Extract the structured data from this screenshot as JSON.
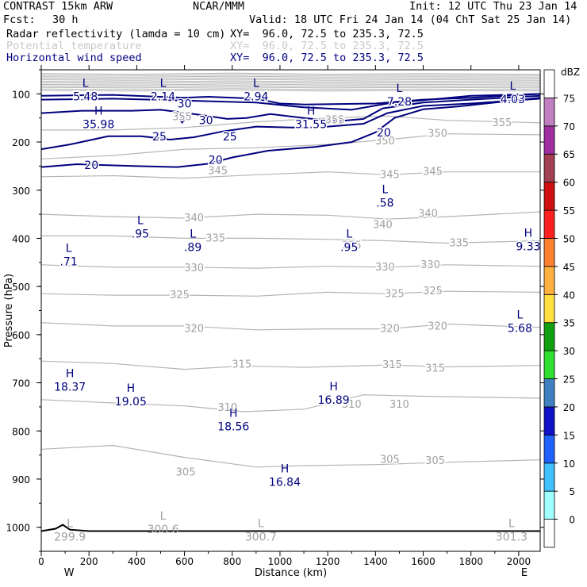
{
  "header": {
    "model": "CONTRAST 15km ARW",
    "center": "NCAR/MMM",
    "init": "Init: 12 UTC Thu 23 Jan 14",
    "fcst_label": "Fcst:",
    "fcst_value": "30 h",
    "valid": "Valid: 18 UTC Fri 24 Jan 14 (04 ChT Sat 25 Jan 14)"
  },
  "fields": [
    {
      "name": "Radar reflectivity (lamda = 10 cm)",
      "xy": "XY=  96.0, 72.5 to 235.3, 72.5",
      "color": "#000000"
    },
    {
      "name": "Potential temperature",
      "xy": "XY=  96.0, 72.5 to 235.3, 72.5",
      "color": "#c8c8c8"
    },
    {
      "name": "Horizontal wind speed",
      "xy": "XY=  96.0, 72.5 to 235.3, 72.5",
      "color": "#000080"
    }
  ],
  "colors": {
    "theta": "#b4b4b4",
    "wind": "#00007e",
    "axis": "#000000",
    "label_theta": "#a0a0a0"
  },
  "chart_data": {
    "type": "cross-section",
    "xlabel": "Distance (km)",
    "ylabel": "Pressure (hPa)",
    "xlim": [
      0,
      2090
    ],
    "ylim": [
      1050,
      50
    ],
    "x_ticks": [
      0,
      200,
      400,
      600,
      800,
      1000,
      1200,
      1400,
      1600,
      1800,
      2000
    ],
    "y_ticks": [
      100,
      200,
      300,
      400,
      500,
      600,
      700,
      800,
      900,
      1000
    ],
    "end_labels": {
      "left": "W",
      "right": "E"
    },
    "colorbar": {
      "unit": "dBZ",
      "levels": [
        0,
        5,
        10,
        15,
        20,
        25,
        30,
        35,
        40,
        45,
        50,
        55,
        60,
        65,
        70,
        75
      ],
      "colors": [
        "#ffffff",
        "#a0ffff",
        "#40c0ff",
        "#2060ff",
        "#1010c8",
        "#4080c0",
        "#30e030",
        "#10a010",
        "#ffe040",
        "#ffb040",
        "#ff8030",
        "#ff2020",
        "#d01010",
        "#a04050",
        "#a030a0",
        "#c080c0",
        "#ffffff"
      ]
    },
    "theta_contours": [
      {
        "value": 305,
        "points": [
          [
            0,
            838
          ],
          [
            300,
            830
          ],
          [
            600,
            855
          ],
          [
            900,
            875
          ],
          [
            1100,
            872
          ],
          [
            1400,
            870
          ],
          [
            1700,
            865
          ],
          [
            2090,
            860
          ]
        ],
        "labels": [
          [
            605,
            886
          ],
          [
            1460,
            860
          ],
          [
            1650,
            862
          ]
        ]
      },
      {
        "value": 310,
        "points": [
          [
            0,
            735
          ],
          [
            300,
            742
          ],
          [
            600,
            748
          ],
          [
            850,
            760
          ],
          [
            1100,
            755
          ],
          [
            1350,
            725
          ],
          [
            1600,
            728
          ],
          [
            2090,
            732
          ]
        ],
        "labels": [
          [
            780,
            752
          ],
          [
            1300,
            745
          ],
          [
            1500,
            745
          ]
        ]
      },
      {
        "value": 315,
        "points": [
          [
            0,
            655
          ],
          [
            300,
            660
          ],
          [
            600,
            672
          ],
          [
            850,
            665
          ],
          [
            1100,
            668
          ],
          [
            1450,
            663
          ],
          [
            1700,
            667
          ],
          [
            2090,
            664
          ]
        ],
        "labels": [
          [
            840,
            662
          ],
          [
            1470,
            663
          ],
          [
            1650,
            670
          ]
        ]
      },
      {
        "value": 320,
        "points": [
          [
            0,
            575
          ],
          [
            300,
            582
          ],
          [
            600,
            582
          ],
          [
            900,
            590
          ],
          [
            1200,
            588
          ],
          [
            1450,
            588
          ],
          [
            1700,
            578
          ],
          [
            2090,
            585
          ]
        ],
        "labels": [
          [
            640,
            588
          ],
          [
            1460,
            588
          ],
          [
            1660,
            583
          ]
        ]
      },
      {
        "value": 325,
        "points": [
          [
            0,
            515
          ],
          [
            300,
            518
          ],
          [
            600,
            518
          ],
          [
            900,
            520
          ],
          [
            1200,
            512
          ],
          [
            1450,
            515
          ],
          [
            1700,
            510
          ],
          [
            2090,
            512
          ]
        ],
        "labels": [
          [
            580,
            518
          ],
          [
            1480,
            515
          ],
          [
            1640,
            510
          ]
        ]
      },
      {
        "value": 330,
        "points": [
          [
            0,
            455
          ],
          [
            300,
            460
          ],
          [
            600,
            460
          ],
          [
            900,
            462
          ],
          [
            1200,
            458
          ],
          [
            1450,
            460
          ],
          [
            1700,
            455
          ],
          [
            2090,
            458
          ]
        ],
        "labels": [
          [
            640,
            462
          ],
          [
            1440,
            460
          ],
          [
            1630,
            455
          ]
        ]
      },
      {
        "value": 335,
        "points": [
          [
            0,
            395
          ],
          [
            300,
            395
          ],
          [
            600,
            400
          ],
          [
            900,
            400
          ],
          [
            1200,
            402
          ],
          [
            1450,
            405
          ],
          [
            1700,
            410
          ],
          [
            2090,
            405
          ]
        ],
        "labels": [
          [
            730,
            400
          ],
          [
            1300,
            415
          ],
          [
            1750,
            410
          ]
        ]
      },
      {
        "value": 340,
        "points": [
          [
            0,
            350
          ],
          [
            300,
            355
          ],
          [
            600,
            358
          ],
          [
            900,
            350
          ],
          [
            1200,
            352
          ],
          [
            1450,
            360
          ],
          [
            1700,
            355
          ],
          [
            2090,
            345
          ]
        ],
        "labels": [
          [
            640,
            358
          ],
          [
            1430,
            372
          ],
          [
            1620,
            349
          ]
        ]
      },
      {
        "value": 345,
        "points": [
          [
            0,
            272
          ],
          [
            300,
            270
          ],
          [
            600,
            275
          ],
          [
            900,
            268
          ],
          [
            1200,
            262
          ],
          [
            1450,
            268
          ],
          [
            1700,
            262
          ],
          [
            2090,
            262
          ]
        ],
        "labels": [
          [
            740,
            260
          ],
          [
            1460,
            268
          ],
          [
            1640,
            262
          ]
        ]
      },
      {
        "value": 350,
        "points": [
          [
            0,
            235
          ],
          [
            300,
            228
          ],
          [
            600,
            215
          ],
          [
            900,
            212
          ],
          [
            1200,
            205
          ],
          [
            1450,
            195
          ],
          [
            1700,
            183
          ],
          [
            2090,
            185
          ]
        ],
        "labels": [
          [
            1440,
            198
          ],
          [
            1660,
            183
          ]
        ]
      },
      {
        "value": 355,
        "points": [
          [
            0,
            175
          ],
          [
            300,
            175
          ],
          [
            600,
            170
          ],
          [
            900,
            158
          ],
          [
            1200,
            150
          ],
          [
            1450,
            146
          ],
          [
            1700,
            155
          ],
          [
            2090,
            160
          ]
        ],
        "labels": [
          [
            590,
            148
          ],
          [
            1230,
            155
          ],
          [
            1930,
            160
          ]
        ]
      }
    ],
    "wind_contours": [
      {
        "value": 20,
        "points": [
          [
            0,
            252
          ],
          [
            150,
            246
          ],
          [
            400,
            250
          ],
          [
            570,
            252
          ],
          [
            700,
            245
          ],
          [
            800,
            232
          ],
          [
            950,
            218
          ],
          [
            1150,
            210
          ],
          [
            1300,
            200
          ],
          [
            1400,
            180
          ],
          [
            1480,
            150
          ],
          [
            1600,
            132
          ],
          [
            1750,
            126
          ],
          [
            1900,
            118
          ],
          [
            2090,
            108
          ]
        ],
        "labels": [
          [
            210,
            248
          ],
          [
            730,
            237
          ],
          [
            1435,
            180
          ]
        ]
      },
      {
        "value": 25,
        "points": [
          [
            0,
            215
          ],
          [
            120,
            205
          ],
          [
            280,
            188
          ],
          [
            420,
            188
          ],
          [
            540,
            195
          ],
          [
            640,
            190
          ],
          [
            760,
            178
          ],
          [
            900,
            168
          ],
          [
            1050,
            170
          ],
          [
            1200,
            168
          ],
          [
            1350,
            162
          ],
          [
            1450,
            140
          ],
          [
            1600,
            125
          ],
          [
            1800,
            120
          ],
          [
            2090,
            110
          ]
        ],
        "labels": [
          [
            495,
            188
          ],
          [
            790,
            188
          ]
        ]
      },
      {
        "value": 30,
        "points": [
          [
            0,
            140
          ],
          [
            170,
            135
          ],
          [
            380,
            135
          ],
          [
            500,
            133
          ],
          [
            640,
            142
          ],
          [
            780,
            152
          ],
          [
            860,
            150
          ],
          [
            960,
            142
          ],
          [
            1100,
            150
          ],
          [
            1240,
            157
          ],
          [
            1350,
            152
          ],
          [
            1430,
            130
          ],
          [
            1600,
            118
          ],
          [
            1800,
            112
          ],
          [
            2090,
            104
          ]
        ],
        "labels": [
          [
            690,
            155
          ],
          [
            600,
            120
          ]
        ]
      }
    ],
    "wind_small_contours": [
      {
        "value": 30,
        "points": [
          [
            0,
            104
          ],
          [
            300,
            102
          ],
          [
            600,
            108
          ],
          [
            700,
            106
          ],
          [
            900,
            110
          ],
          [
            1000,
            120
          ],
          [
            1100,
            122
          ],
          [
            1400,
            120
          ],
          [
            1600,
            112
          ],
          [
            1800,
            108
          ],
          [
            2090,
            100
          ]
        ]
      },
      {
        "value": 30,
        "points": [
          [
            0,
            112
          ],
          [
            300,
            110
          ],
          [
            600,
            114
          ],
          [
            900,
            118
          ],
          [
            1100,
            128
          ],
          [
            1300,
            133
          ],
          [
            1450,
            120
          ],
          [
            1800,
            104
          ],
          [
            2090,
            100
          ]
        ]
      }
    ],
    "extrema_labels": [
      {
        "marker": "L",
        "value": "5.48",
        "x": 185,
        "p": 97
      },
      {
        "marker": "L",
        "value": "2.14",
        "x": 510,
        "p": 97
      },
      {
        "marker": "L",
        "value": "2.94",
        "x": 900,
        "p": 97
      },
      {
        "marker": "L",
        "value": "7.28",
        "x": 1500,
        "p": 108
      },
      {
        "marker": "L",
        "value": "4.03",
        "x": 1975,
        "p": 103
      },
      {
        "marker": "H",
        "value": "35.98",
        "x": 240,
        "p": 155
      },
      {
        "marker": "H",
        "value": "31.55",
        "x": 1130,
        "p": 155
      },
      {
        "marker": "L",
        "value": ".58",
        "x": 1440,
        "p": 318
      },
      {
        "marker": "L",
        "value": ".95",
        "x": 415,
        "p": 382
      },
      {
        "marker": "L",
        "value": ".89",
        "x": 635,
        "p": 410
      },
      {
        "marker": "L",
        "value": ".95",
        "x": 1290,
        "p": 410
      },
      {
        "marker": "H",
        "value": "9.33",
        "x": 2040,
        "p": 408
      },
      {
        "marker": "L",
        "value": ".71",
        "x": 115,
        "p": 440
      },
      {
        "marker": "L",
        "value": "5.68",
        "x": 2005,
        "p": 578
      },
      {
        "marker": "H",
        "value": "18.37",
        "x": 120,
        "p": 700
      },
      {
        "marker": "H",
        "value": "19.05",
        "x": 375,
        "p": 730
      },
      {
        "marker": "H",
        "value": "16.89",
        "x": 1225,
        "p": 727
      },
      {
        "marker": "H",
        "value": "18.56",
        "x": 805,
        "p": 782
      },
      {
        "marker": "H",
        "value": "16.84",
        "x": 1020,
        "p": 898
      }
    ],
    "theta_extrema_labels": [
      {
        "marker": "L",
        "value": "299.9",
        "x": 120,
        "p": 1008
      },
      {
        "marker": "L",
        "value": "300.6",
        "x": 510,
        "p": 992
      },
      {
        "marker": "L",
        "value": "300.7",
        "x": 920,
        "p": 1008
      },
      {
        "marker": "L",
        "value": "301.3",
        "x": 1970,
        "p": 1008
      }
    ],
    "surface": [
      [
        0,
        1008
      ],
      [
        60,
        1003
      ],
      [
        90,
        995
      ],
      [
        120,
        1005
      ],
      [
        200,
        1008
      ],
      [
        2090,
        1008
      ]
    ]
  }
}
